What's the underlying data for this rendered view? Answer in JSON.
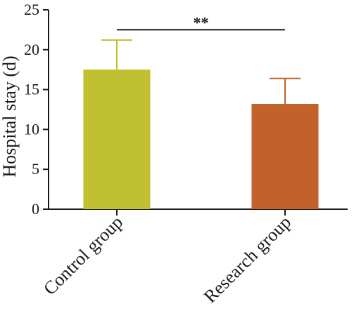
{
  "chart_data": {
    "type": "bar",
    "title": "",
    "xlabel": "",
    "ylabel": "Hospital stay (d)",
    "ylim": [
      0,
      25
    ],
    "yticks": [
      0,
      5,
      10,
      15,
      20,
      25
    ],
    "categories": [
      "Control group",
      "Research group"
    ],
    "values": [
      17.5,
      13.2
    ],
    "errors": [
      3.7,
      3.2
    ],
    "colors": [
      "#c0c030",
      "#c2612a"
    ],
    "grid": false,
    "legend": "none",
    "significance": {
      "between": [
        "Control group",
        "Research group"
      ],
      "label": "**",
      "y": 22.5
    }
  }
}
